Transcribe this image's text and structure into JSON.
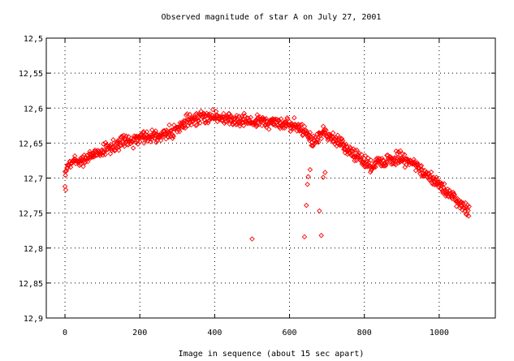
{
  "chart_data": {
    "type": "scatter",
    "title": "Observed magnitude of star A on July 27, 2001",
    "xlabel": "Image in sequence (about 15 sec apart)",
    "ylabel": "",
    "xlim": [
      -50,
      1150
    ],
    "ylim": [
      12.5,
      12.9
    ],
    "y_inverted": true,
    "grid": true,
    "x_ticks": [
      0,
      200,
      400,
      600,
      800,
      1000
    ],
    "x_tick_labels": [
      "0",
      "200",
      "400",
      "600",
      "800",
      "1000"
    ],
    "y_ticks": [
      12.5,
      12.55,
      12.6,
      12.65,
      12.7,
      12.75,
      12.8,
      12.85,
      12.9
    ],
    "y_tick_labels": [
      "12,5",
      "12,55",
      "12,6",
      "12,65",
      "12,7",
      "12,75",
      "12,8",
      "12,85",
      "12,9"
    ],
    "marker": "diamond",
    "series": [
      {
        "name": "",
        "color": "#ff0000",
        "trend": [
          [
            0,
            12.69
          ],
          [
            10,
            12.68
          ],
          [
            20,
            12.677
          ],
          [
            40,
            12.675
          ],
          [
            60,
            12.672
          ],
          [
            80,
            12.665
          ],
          [
            100,
            12.66
          ],
          [
            150,
            12.65
          ],
          [
            200,
            12.643
          ],
          [
            250,
            12.638
          ],
          [
            300,
            12.632
          ],
          [
            320,
            12.622
          ],
          [
            350,
            12.615
          ],
          [
            380,
            12.612
          ],
          [
            400,
            12.612
          ],
          [
            450,
            12.617
          ],
          [
            500,
            12.62
          ],
          [
            550,
            12.62
          ],
          [
            600,
            12.622
          ],
          [
            620,
            12.627
          ],
          [
            640,
            12.635
          ],
          [
            650,
            12.64
          ],
          [
            660,
            12.648
          ],
          [
            670,
            12.645
          ],
          [
            680,
            12.64
          ],
          [
            690,
            12.635
          ],
          [
            700,
            12.637
          ],
          [
            720,
            12.645
          ],
          [
            740,
            12.652
          ],
          [
            760,
            12.66
          ],
          [
            780,
            12.668
          ],
          [
            800,
            12.678
          ],
          [
            820,
            12.683
          ],
          [
            840,
            12.678
          ],
          [
            860,
            12.675
          ],
          [
            880,
            12.672
          ],
          [
            900,
            12.672
          ],
          [
            920,
            12.675
          ],
          [
            940,
            12.683
          ],
          [
            960,
            12.692
          ],
          [
            980,
            12.7
          ],
          [
            1000,
            12.708
          ],
          [
            1020,
            12.718
          ],
          [
            1040,
            12.728
          ],
          [
            1060,
            12.738
          ],
          [
            1080,
            12.745
          ]
        ],
        "outliers": [
          [
            0,
            12.712
          ],
          [
            2,
            12.717
          ],
          [
            500,
            12.787
          ],
          [
            640,
            12.784
          ],
          [
            645,
            12.739
          ],
          [
            648,
            12.709
          ],
          [
            650,
            12.698
          ],
          [
            655,
            12.688
          ],
          [
            680,
            12.747
          ],
          [
            685,
            12.782
          ],
          [
            690,
            12.699
          ],
          [
            695,
            12.692
          ]
        ]
      }
    ]
  }
}
